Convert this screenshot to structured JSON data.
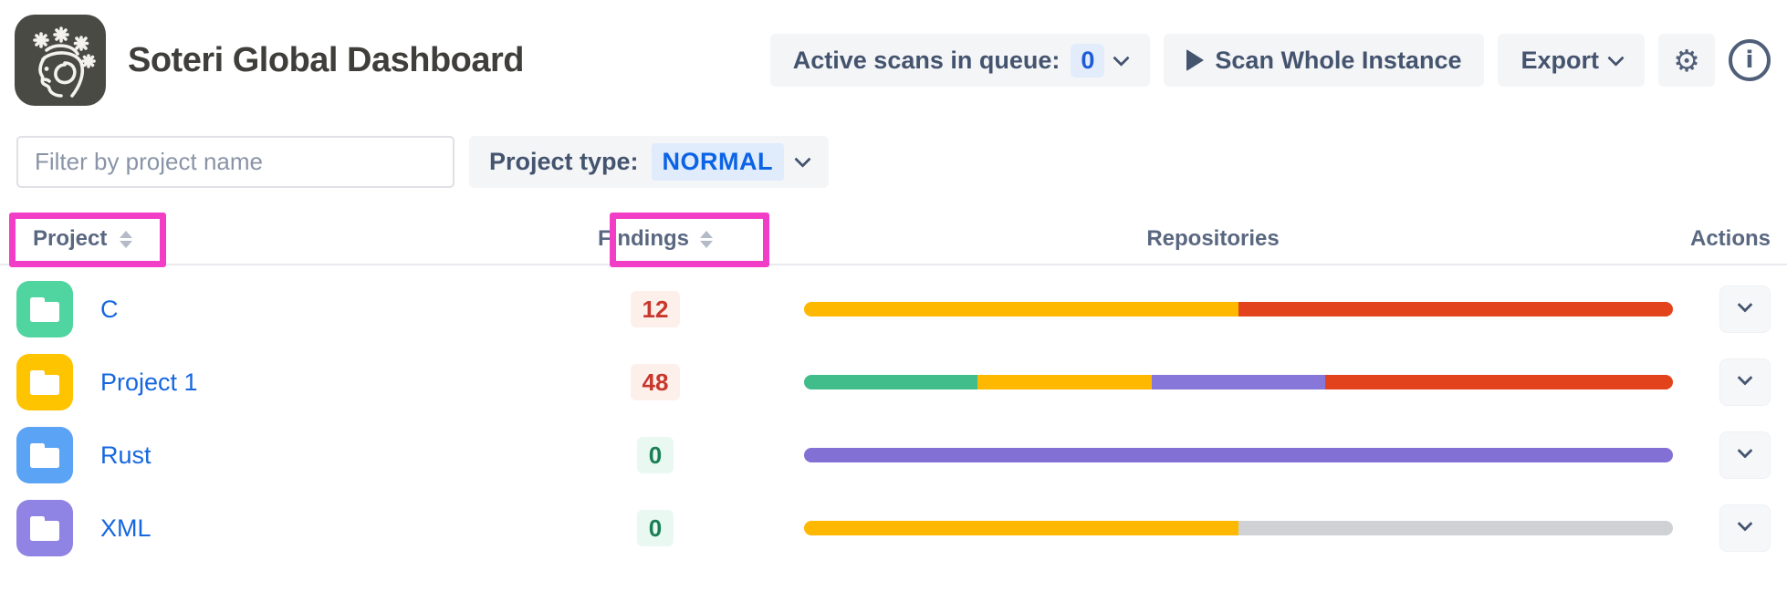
{
  "header": {
    "title": "Soteri Global Dashboard",
    "active_scans_label": "Active scans in queue:",
    "active_scans_count": "0",
    "scan_whole_instance_label": "Scan Whole Instance",
    "export_label": "Export",
    "info_glyph": "i",
    "gear_glyph": "⚙"
  },
  "filters": {
    "search_placeholder": "Filter by project name",
    "project_type_label": "Project type:",
    "project_type_value": "NORMAL"
  },
  "table": {
    "columns": {
      "project": "Project",
      "findings": "Findings",
      "repositories": "Repositories",
      "actions": "Actions"
    },
    "rows": [
      {
        "name": "C",
        "avatar_color": "#50d5a0",
        "findings": "12",
        "findings_kind": "alert",
        "segments": [
          {
            "color": "#ffb800",
            "pct": 50
          },
          {
            "color": "#e2431c",
            "pct": 50
          }
        ]
      },
      {
        "name": "Project 1",
        "avatar_color": "#ffc400",
        "findings": "48",
        "findings_kind": "alert",
        "segments": [
          {
            "color": "#41bd8c",
            "pct": 20
          },
          {
            "color": "#ffb800",
            "pct": 20
          },
          {
            "color": "#8777d9",
            "pct": 20
          },
          {
            "color": "#e2431c",
            "pct": 40
          }
        ]
      },
      {
        "name": "Rust",
        "avatar_color": "#5ba3f5",
        "findings": "0",
        "findings_kind": "ok",
        "segments": [
          {
            "color": "#8270d4",
            "pct": 100
          }
        ]
      },
      {
        "name": "XML",
        "avatar_color": "#8f83e3",
        "findings": "0",
        "findings_kind": "ok",
        "segments": [
          {
            "color": "#ffb800",
            "pct": 50
          },
          {
            "color": "#cfd1d4",
            "pct": 50
          }
        ]
      }
    ]
  },
  "annotations": {
    "highlight_color": "#f23dc7",
    "highlighted_columns": [
      "Project",
      "Findings"
    ]
  },
  "icons": {
    "logo": "soteri-face-logo",
    "queue_dropdown": "chevron-down",
    "scan": "play-triangle",
    "export_dropdown": "chevron-down",
    "settings": "gear",
    "about": "info-circle",
    "sort": "sort-arrows",
    "row_action": "chevron-down",
    "project_avatar": "folder"
  }
}
